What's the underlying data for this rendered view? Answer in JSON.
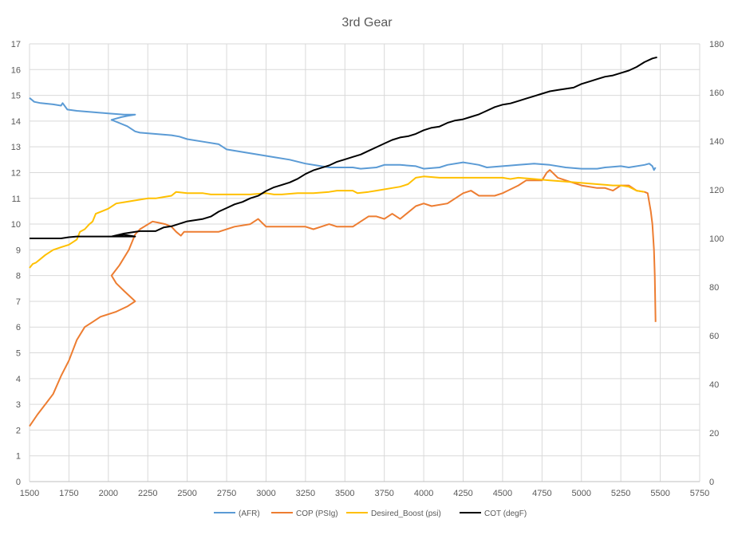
{
  "chart_data": {
    "type": "line",
    "title": "3rd Gear",
    "xlabel": "",
    "ylabel": "",
    "y2label": "",
    "xlim": [
      1500,
      5750
    ],
    "ylim": [
      0,
      17
    ],
    "y2lim": [
      0,
      180
    ],
    "x_ticks": [
      1500,
      1750,
      2000,
      2250,
      2500,
      2750,
      3000,
      3250,
      3500,
      3750,
      4000,
      4250,
      4500,
      4750,
      5000,
      5250,
      5500,
      5750
    ],
    "y_ticks": [
      0,
      1,
      2,
      3,
      4,
      5,
      6,
      7,
      8,
      9,
      10,
      11,
      12,
      13,
      14,
      15,
      16,
      17
    ],
    "y2_ticks": [
      0,
      20,
      40,
      60,
      80,
      100,
      120,
      140,
      160,
      180
    ],
    "grid": true,
    "legend_position": "bottom",
    "series": [
      {
        "name": "(AFR)",
        "color": "#5B9BD5",
        "axis": "left",
        "points": [
          [
            1500,
            14.9
          ],
          [
            1530,
            14.75
          ],
          [
            1570,
            14.7
          ],
          [
            1650,
            14.65
          ],
          [
            1700,
            14.6
          ],
          [
            1710,
            14.7
          ],
          [
            1740,
            14.45
          ],
          [
            1800,
            14.4
          ],
          [
            1900,
            14.35
          ],
          [
            2000,
            14.3
          ],
          [
            2100,
            14.25
          ],
          [
            2170,
            14.25
          ],
          [
            2120,
            14.2
          ],
          [
            2080,
            14.15
          ],
          [
            2020,
            14.05
          ],
          [
            2060,
            13.95
          ],
          [
            2120,
            13.8
          ],
          [
            2170,
            13.6
          ],
          [
            2200,
            13.55
          ],
          [
            2300,
            13.5
          ],
          [
            2400,
            13.45
          ],
          [
            2450,
            13.4
          ],
          [
            2500,
            13.3
          ],
          [
            2600,
            13.2
          ],
          [
            2700,
            13.1
          ],
          [
            2750,
            12.9
          ],
          [
            2850,
            12.8
          ],
          [
            2950,
            12.7
          ],
          [
            3050,
            12.6
          ],
          [
            3150,
            12.5
          ],
          [
            3250,
            12.35
          ],
          [
            3350,
            12.25
          ],
          [
            3400,
            12.2
          ],
          [
            3450,
            12.2
          ],
          [
            3550,
            12.2
          ],
          [
            3600,
            12.15
          ],
          [
            3700,
            12.2
          ],
          [
            3750,
            12.3
          ],
          [
            3850,
            12.3
          ],
          [
            3950,
            12.25
          ],
          [
            4000,
            12.15
          ],
          [
            4100,
            12.2
          ],
          [
            4150,
            12.3
          ],
          [
            4250,
            12.4
          ],
          [
            4300,
            12.35
          ],
          [
            4350,
            12.3
          ],
          [
            4400,
            12.2
          ],
          [
            4500,
            12.25
          ],
          [
            4600,
            12.3
          ],
          [
            4700,
            12.35
          ],
          [
            4800,
            12.3
          ],
          [
            4900,
            12.2
          ],
          [
            5000,
            12.15
          ],
          [
            5100,
            12.15
          ],
          [
            5150,
            12.2
          ],
          [
            5250,
            12.25
          ],
          [
            5300,
            12.2
          ],
          [
            5400,
            12.3
          ],
          [
            5430,
            12.35
          ],
          [
            5450,
            12.25
          ],
          [
            5460,
            12.1
          ],
          [
            5470,
            12.2
          ]
        ]
      },
      {
        "name": "COP (PSIg)",
        "color": "#ED7D31",
        "axis": "left",
        "points": [
          [
            1500,
            2.15
          ],
          [
            1550,
            2.6
          ],
          [
            1600,
            3.0
          ],
          [
            1650,
            3.4
          ],
          [
            1700,
            4.1
          ],
          [
            1750,
            4.7
          ],
          [
            1800,
            5.5
          ],
          [
            1850,
            6.0
          ],
          [
            1900,
            6.2
          ],
          [
            1950,
            6.4
          ],
          [
            2050,
            6.6
          ],
          [
            2120,
            6.8
          ],
          [
            2170,
            7.0
          ],
          [
            2100,
            7.4
          ],
          [
            2050,
            7.7
          ],
          [
            2020,
            8.0
          ],
          [
            2070,
            8.4
          ],
          [
            2130,
            9.0
          ],
          [
            2170,
            9.6
          ],
          [
            2200,
            9.8
          ],
          [
            2280,
            10.1
          ],
          [
            2320,
            10.05
          ],
          [
            2360,
            10.0
          ],
          [
            2400,
            9.9
          ],
          [
            2430,
            9.7
          ],
          [
            2460,
            9.55
          ],
          [
            2480,
            9.7
          ],
          [
            2600,
            9.7
          ],
          [
            2700,
            9.7
          ],
          [
            2800,
            9.9
          ],
          [
            2900,
            10.0
          ],
          [
            2950,
            10.2
          ],
          [
            3000,
            9.9
          ],
          [
            3100,
            9.9
          ],
          [
            3250,
            9.9
          ],
          [
            3300,
            9.8
          ],
          [
            3350,
            9.9
          ],
          [
            3400,
            10.0
          ],
          [
            3450,
            9.9
          ],
          [
            3550,
            9.9
          ],
          [
            3600,
            10.1
          ],
          [
            3650,
            10.3
          ],
          [
            3700,
            10.3
          ],
          [
            3750,
            10.2
          ],
          [
            3800,
            10.4
          ],
          [
            3850,
            10.2
          ],
          [
            3950,
            10.7
          ],
          [
            4000,
            10.8
          ],
          [
            4050,
            10.7
          ],
          [
            4150,
            10.8
          ],
          [
            4200,
            11.0
          ],
          [
            4250,
            11.2
          ],
          [
            4300,
            11.3
          ],
          [
            4350,
            11.1
          ],
          [
            4450,
            11.1
          ],
          [
            4500,
            11.2
          ],
          [
            4600,
            11.5
          ],
          [
            4650,
            11.7
          ],
          [
            4700,
            11.7
          ],
          [
            4750,
            11.7
          ],
          [
            4780,
            12.0
          ],
          [
            4800,
            12.1
          ],
          [
            4850,
            11.8
          ],
          [
            4900,
            11.7
          ],
          [
            5000,
            11.5
          ],
          [
            5100,
            11.4
          ],
          [
            5150,
            11.4
          ],
          [
            5200,
            11.3
          ],
          [
            5250,
            11.5
          ],
          [
            5300,
            11.5
          ],
          [
            5350,
            11.3
          ],
          [
            5400,
            11.25
          ],
          [
            5420,
            11.2
          ],
          [
            5440,
            10.5
          ],
          [
            5450,
            10.0
          ],
          [
            5460,
            9.0
          ],
          [
            5465,
            8.0
          ],
          [
            5470,
            6.2
          ]
        ]
      },
      {
        "name": "Desired_Boost (psi)",
        "color": "#FFC000",
        "axis": "left",
        "points": [
          [
            1500,
            8.3
          ],
          [
            1520,
            8.45
          ],
          [
            1540,
            8.5
          ],
          [
            1560,
            8.6
          ],
          [
            1600,
            8.8
          ],
          [
            1650,
            9.0
          ],
          [
            1700,
            9.1
          ],
          [
            1750,
            9.2
          ],
          [
            1800,
            9.4
          ],
          [
            1820,
            9.7
          ],
          [
            1850,
            9.8
          ],
          [
            1880,
            10.0
          ],
          [
            1900,
            10.1
          ],
          [
            1920,
            10.4
          ],
          [
            1960,
            10.5
          ],
          [
            2000,
            10.6
          ],
          [
            2050,
            10.8
          ],
          [
            2100,
            10.85
          ],
          [
            2150,
            10.9
          ],
          [
            2200,
            10.95
          ],
          [
            2250,
            11.0
          ],
          [
            2300,
            11.0
          ],
          [
            2350,
            11.05
          ],
          [
            2400,
            11.1
          ],
          [
            2430,
            11.25
          ],
          [
            2500,
            11.2
          ],
          [
            2550,
            11.2
          ],
          [
            2600,
            11.2
          ],
          [
            2650,
            11.15
          ],
          [
            2700,
            11.15
          ],
          [
            2800,
            11.15
          ],
          [
            2900,
            11.15
          ],
          [
            3000,
            11.2
          ],
          [
            3050,
            11.15
          ],
          [
            3100,
            11.15
          ],
          [
            3200,
            11.2
          ],
          [
            3300,
            11.2
          ],
          [
            3400,
            11.25
          ],
          [
            3450,
            11.3
          ],
          [
            3550,
            11.3
          ],
          [
            3580,
            11.2
          ],
          [
            3650,
            11.25
          ],
          [
            3700,
            11.3
          ],
          [
            3800,
            11.4
          ],
          [
            3850,
            11.45
          ],
          [
            3900,
            11.55
          ],
          [
            3950,
            11.8
          ],
          [
            4000,
            11.85
          ],
          [
            4100,
            11.8
          ],
          [
            4200,
            11.8
          ],
          [
            4300,
            11.8
          ],
          [
            4400,
            11.8
          ],
          [
            4500,
            11.8
          ],
          [
            4550,
            11.75
          ],
          [
            4600,
            11.8
          ],
          [
            4700,
            11.75
          ],
          [
            4800,
            11.7
          ],
          [
            4900,
            11.65
          ],
          [
            5000,
            11.6
          ],
          [
            5100,
            11.55
          ],
          [
            5200,
            11.5
          ],
          [
            5250,
            11.5
          ],
          [
            5300,
            11.45
          ],
          [
            5350,
            11.3
          ],
          [
            5400,
            11.25
          ]
        ]
      },
      {
        "name": "COT (degF)",
        "color": "#000000",
        "axis": "right",
        "points": [
          [
            1500,
            100
          ],
          [
            1600,
            100
          ],
          [
            1700,
            100
          ],
          [
            1750,
            100.5
          ],
          [
            1800,
            100.8
          ],
          [
            1900,
            100.8
          ],
          [
            2000,
            100.8
          ],
          [
            2100,
            100.8
          ],
          [
            2170,
            100.8
          ],
          [
            2100,
            101.5
          ],
          [
            2020,
            100.8
          ],
          [
            2100,
            102
          ],
          [
            2150,
            102.5
          ],
          [
            2200,
            103
          ],
          [
            2250,
            103
          ],
          [
            2300,
            103
          ],
          [
            2350,
            104.5
          ],
          [
            2400,
            105
          ],
          [
            2450,
            106
          ],
          [
            2500,
            107
          ],
          [
            2600,
            108
          ],
          [
            2650,
            109
          ],
          [
            2700,
            111
          ],
          [
            2750,
            112.5
          ],
          [
            2800,
            114
          ],
          [
            2850,
            115
          ],
          [
            2900,
            116.5
          ],
          [
            2950,
            117.5
          ],
          [
            3000,
            119.5
          ],
          [
            3050,
            121
          ],
          [
            3100,
            122
          ],
          [
            3150,
            123
          ],
          [
            3200,
            124.5
          ],
          [
            3250,
            126.5
          ],
          [
            3300,
            128
          ],
          [
            3350,
            129
          ],
          [
            3400,
            130
          ],
          [
            3450,
            131.5
          ],
          [
            3500,
            132.5
          ],
          [
            3550,
            133.5
          ],
          [
            3600,
            134.5
          ],
          [
            3650,
            136
          ],
          [
            3700,
            137.5
          ],
          [
            3750,
            139
          ],
          [
            3800,
            140.5
          ],
          [
            3850,
            141.5
          ],
          [
            3900,
            142
          ],
          [
            3950,
            143
          ],
          [
            4000,
            144.5
          ],
          [
            4050,
            145.5
          ],
          [
            4100,
            146
          ],
          [
            4150,
            147.5
          ],
          [
            4200,
            148.5
          ],
          [
            4250,
            149
          ],
          [
            4300,
            150
          ],
          [
            4350,
            151
          ],
          [
            4400,
            152.5
          ],
          [
            4450,
            154
          ],
          [
            4500,
            155
          ],
          [
            4550,
            155.5
          ],
          [
            4600,
            156.5
          ],
          [
            4650,
            157.5
          ],
          [
            4700,
            158.5
          ],
          [
            4750,
            159.5
          ],
          [
            4800,
            160.5
          ],
          [
            4850,
            161
          ],
          [
            4900,
            161.5
          ],
          [
            4950,
            162
          ],
          [
            5000,
            163.5
          ],
          [
            5050,
            164.5
          ],
          [
            5100,
            165.5
          ],
          [
            5150,
            166.5
          ],
          [
            5200,
            167
          ],
          [
            5250,
            168
          ],
          [
            5300,
            169
          ],
          [
            5350,
            170.5
          ],
          [
            5400,
            172.5
          ],
          [
            5450,
            174
          ],
          [
            5480,
            174.5
          ]
        ]
      }
    ]
  }
}
